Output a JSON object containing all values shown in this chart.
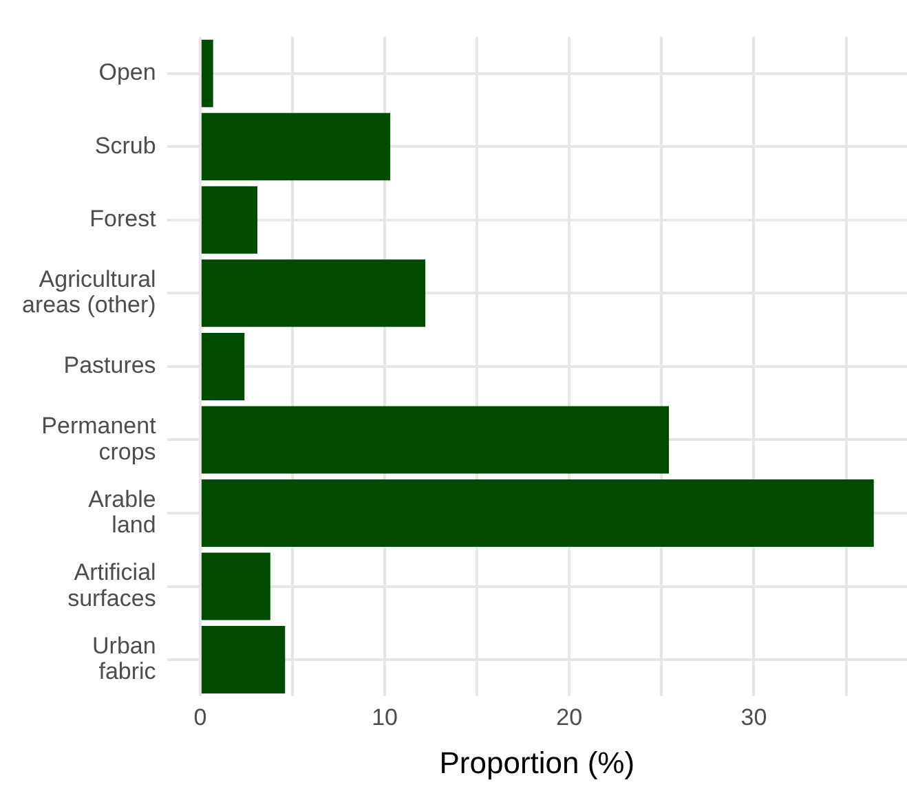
{
  "chart_data": {
    "type": "bar",
    "orientation": "horizontal",
    "xlabel": "Proportion (%)",
    "categories": [
      "Open",
      "Scrub",
      "Forest",
      "Agricultural areas (other)",
      "Pastures",
      "Permanent crops",
      "Arable land",
      "Artificial surfaces",
      "Urban fabric"
    ],
    "values": [
      0.7,
      10.3,
      3.1,
      12.2,
      2.4,
      25.4,
      36.5,
      3.8,
      4.6
    ],
    "color": "#004b00",
    "xlim": [
      -1.8,
      38.3
    ],
    "xticks": [
      0,
      {
        "value": 5,
        "label": null
      },
      10,
      {
        "value": 15,
        "label": null
      },
      20,
      {
        "value": 25,
        "label": null
      },
      30,
      {
        "value": 35,
        "label": null
      }
    ],
    "grid": true,
    "legend": false
  }
}
